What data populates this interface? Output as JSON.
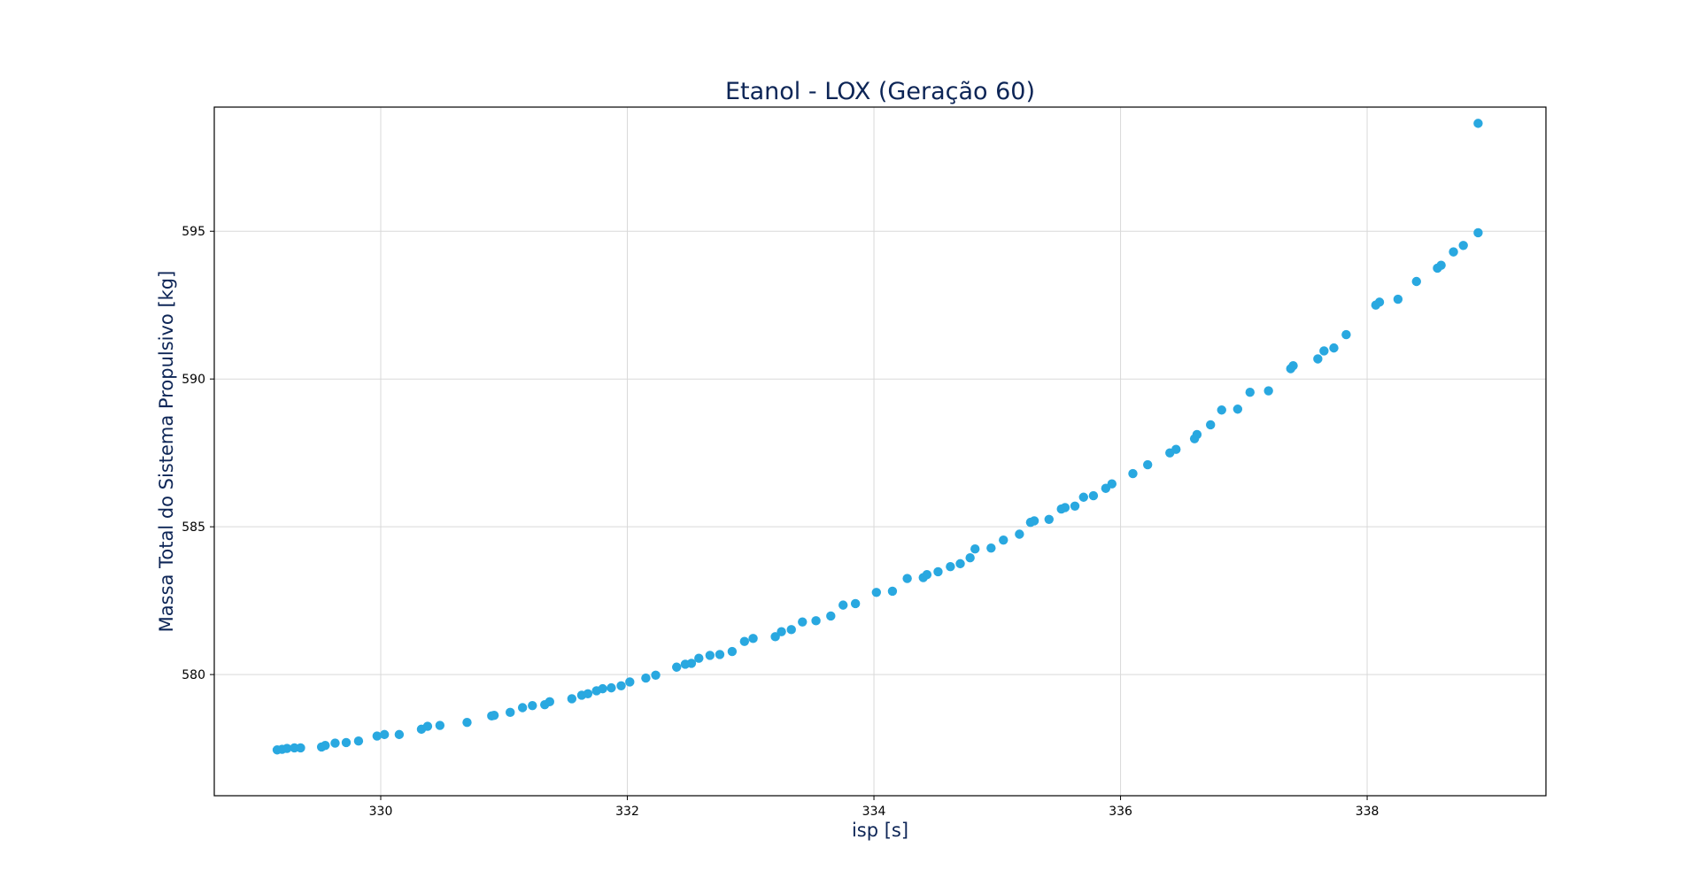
{
  "chart_data": {
    "type": "scatter",
    "title": "Etanol - LOX (Geração 60)",
    "xlabel": "isp [s]",
    "ylabel": "Massa Total do Sistema Propulsivo [kg]",
    "xlim": [
      328.65,
      339.45
    ],
    "ylim": [
      575.9,
      599.2
    ],
    "xticks": [
      330,
      332,
      334,
      336,
      338
    ],
    "yticks": [
      580,
      585,
      590,
      595
    ],
    "grid": true,
    "point_color": "#29a8e0",
    "series": [
      {
        "x": [
          329.16,
          329.2,
          329.24,
          329.3,
          329.35,
          329.52,
          329.55,
          329.63,
          329.72,
          329.82,
          329.97,
          330.03,
          330.15,
          330.33,
          330.38,
          330.48,
          330.7,
          330.9,
          330.92,
          331.05,
          331.15,
          331.23,
          331.33,
          331.37,
          331.55,
          331.63,
          331.68,
          331.75,
          331.8,
          331.87,
          331.95,
          332.02,
          332.15,
          332.23,
          332.4,
          332.47,
          332.52,
          332.58,
          332.67,
          332.75,
          332.85,
          332.95,
          333.02,
          333.2,
          333.25,
          333.33,
          333.42,
          333.53,
          333.65,
          333.75,
          333.85,
          334.02,
          334.15,
          334.27,
          334.4,
          334.43,
          334.52,
          334.62,
          334.7,
          334.78,
          334.82,
          334.95,
          335.05,
          335.18,
          335.27,
          335.3,
          335.42,
          335.52,
          335.55,
          335.63,
          335.7,
          335.78,
          335.88,
          335.93,
          336.1,
          336.22,
          336.4,
          336.45,
          336.6,
          336.62,
          336.73,
          336.82,
          336.95,
          337.05,
          337.2,
          337.38,
          337.4,
          337.6,
          337.65,
          337.73,
          337.83,
          338.07,
          338.1,
          338.25,
          338.4,
          338.57,
          338.6,
          338.7,
          338.78,
          338.9,
          338.9
        ],
        "y": [
          577.45,
          577.47,
          577.5,
          577.52,
          577.52,
          577.55,
          577.6,
          577.68,
          577.7,
          577.75,
          577.92,
          577.97,
          577.97,
          578.15,
          578.25,
          578.28,
          578.38,
          578.6,
          578.62,
          578.72,
          578.88,
          578.95,
          578.98,
          579.08,
          579.18,
          579.3,
          579.35,
          579.45,
          579.52,
          579.55,
          579.62,
          579.75,
          579.88,
          579.98,
          580.25,
          580.35,
          580.38,
          580.55,
          580.65,
          580.68,
          580.78,
          581.12,
          581.22,
          581.28,
          581.45,
          581.52,
          581.78,
          581.82,
          581.98,
          582.35,
          582.4,
          582.78,
          582.82,
          583.25,
          583.28,
          583.38,
          583.48,
          583.65,
          583.75,
          583.95,
          584.25,
          584.28,
          584.55,
          584.75,
          585.15,
          585.2,
          585.25,
          585.6,
          585.65,
          585.7,
          586.0,
          586.05,
          586.3,
          586.45,
          586.8,
          587.1,
          587.5,
          587.62,
          587.98,
          588.12,
          588.45,
          588.95,
          588.98,
          589.55,
          589.6,
          590.35,
          590.45,
          590.68,
          590.95,
          591.05,
          591.5,
          592.5,
          592.6,
          592.7,
          593.3,
          593.75,
          593.85,
          594.3,
          594.52,
          594.95,
          598.65
        ]
      }
    ]
  }
}
